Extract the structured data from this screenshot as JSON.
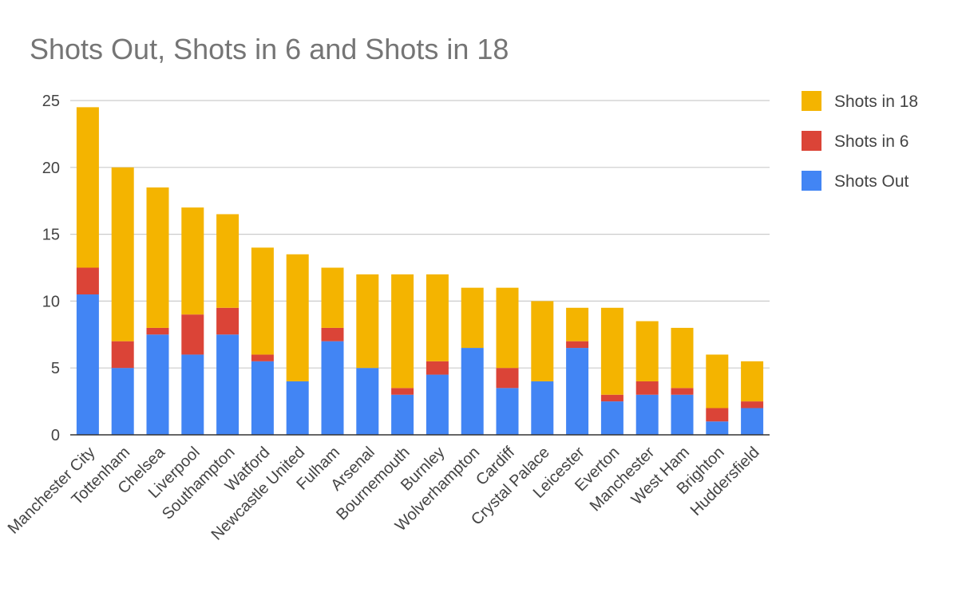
{
  "chart_data": {
    "type": "bar",
    "stacked": true,
    "title": "Shots Out, Shots in 6 and Shots in 18",
    "xlabel": "",
    "ylabel": "",
    "ylim": [
      0,
      25
    ],
    "yticks": [
      0,
      5,
      10,
      15,
      20,
      25
    ],
    "grid": true,
    "legend_position": "right",
    "categories": [
      "Manchester City",
      "Tottenham",
      "Chelsea",
      "Liverpool",
      "Southampton",
      "Watford",
      "Newcastle United",
      "Fulham",
      "Arsenal",
      "Bournemouth",
      "Burnley",
      "Wolverhampton",
      "Cardiff",
      "Crystal Palace",
      "Leicester",
      "Everton",
      "Manchester",
      "West Ham",
      "Brighton",
      "Huddersfield"
    ],
    "series": [
      {
        "name": "Shots Out",
        "color": "#4285f4",
        "values": [
          10.5,
          5,
          7.5,
          6,
          7.5,
          5.5,
          4,
          7,
          5,
          3,
          4.5,
          6.5,
          3.5,
          4,
          6.5,
          2.5,
          3,
          3,
          1,
          2
        ]
      },
      {
        "name": "Shots in 6",
        "color": "#db4437",
        "values": [
          2,
          2,
          0.5,
          3,
          2,
          0.5,
          0,
          1,
          0,
          0.5,
          1,
          0,
          1.5,
          0,
          0.5,
          0.5,
          1,
          0.5,
          1,
          0.5
        ]
      },
      {
        "name": "Shots in 18",
        "color": "#f4b400",
        "values": [
          12,
          13,
          10.5,
          8,
          7,
          8,
          9.5,
          4.5,
          7,
          8.5,
          6.5,
          4.5,
          6,
          6,
          2.5,
          6.5,
          4.5,
          4.5,
          4,
          3
        ]
      }
    ],
    "legend_order": [
      "Shots in 18",
      "Shots in 6",
      "Shots Out"
    ]
  }
}
